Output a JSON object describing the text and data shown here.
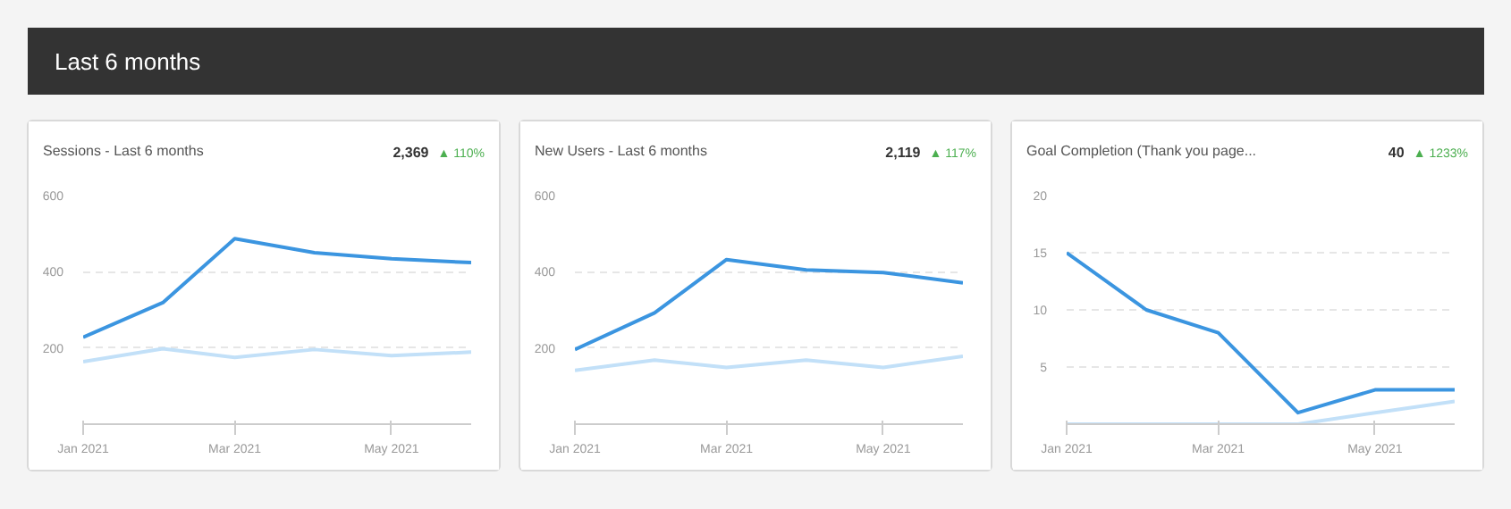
{
  "chart_data": [
    {
      "type": "other",
      "title": "Last 6 months"
    },
    {
      "type": "line",
      "title": "Sessions - Last 6 months",
      "annotations": [
        "2,369",
        "▲ 110%"
      ],
      "x": [
        "2021-01",
        "2021-02",
        "2021-03",
        "2021-04",
        "2021-05",
        "2021-06"
      ],
      "series": [
        {
          "color": "#3b95e0",
          "values": [
            228,
            319,
            487,
            450,
            434,
            424
          ]
        },
        {
          "color": "#c2e0f8",
          "values": [
            164,
            198,
            175,
            196,
            180,
            189
          ]
        }
      ],
      "xlim": [
        "2021-01",
        "2021-06"
      ],
      "xticks": [
        {
          "value": "2021-01",
          "label": "Jan 2021"
        },
        {
          "value": "2021-03",
          "label": "Mar 2021"
        },
        {
          "value": "2021-05",
          "label": "May 2021"
        }
      ],
      "ylim": [
        0,
        600
      ],
      "yticks": [
        200,
        400,
        600
      ],
      "grid": "y",
      "line_style": "solid"
    },
    {
      "type": "line",
      "title": "New Users - Last 6 months",
      "annotations": [
        "2,119",
        "▲ 117%"
      ],
      "x": [
        "2021-01",
        "2021-02",
        "2021-03",
        "2021-04",
        "2021-05",
        "2021-06"
      ],
      "series": [
        {
          "color": "#3b95e0",
          "values": [
            196,
            292,
            432,
            405,
            398,
            371
          ]
        },
        {
          "color": "#c2e0f8",
          "values": [
            141,
            168,
            149,
            168,
            149,
            178
          ]
        }
      ],
      "xlim": [
        "2021-01",
        "2021-06"
      ],
      "xticks": [
        {
          "value": "2021-01",
          "label": "Jan 2021"
        },
        {
          "value": "2021-03",
          "label": "Mar 2021"
        },
        {
          "value": "2021-05",
          "label": "May 2021"
        }
      ],
      "ylim": [
        0,
        600
      ],
      "yticks": [
        200,
        400,
        600
      ],
      "grid": "y",
      "line_style": "solid"
    },
    {
      "type": "line",
      "title": "Goal Completion (Thank you page...",
      "annotations": [
        "40",
        "▲ 1233%"
      ],
      "x": [
        "2021-01",
        "2021-02",
        "2021-03",
        "2021-04",
        "2021-05",
        "2021-06"
      ],
      "series": [
        {
          "color": "#3b95e0",
          "values": [
            15,
            10,
            8,
            1,
            3,
            3
          ]
        },
        {
          "color": "#c2e0f8",
          "values": [
            0,
            0,
            0,
            0,
            1,
            2
          ]
        }
      ],
      "xlim": [
        "2021-01",
        "2021-06"
      ],
      "xticks": [
        {
          "value": "2021-01",
          "label": "Jan 2021"
        },
        {
          "value": "2021-03",
          "label": "Mar 2021"
        },
        {
          "value": "2021-05",
          "label": "May 2021"
        }
      ],
      "ylim": [
        0,
        20
      ],
      "yticks": [
        5,
        10,
        15,
        20
      ],
      "grid": "y",
      "line_style": "solid"
    }
  ]
}
